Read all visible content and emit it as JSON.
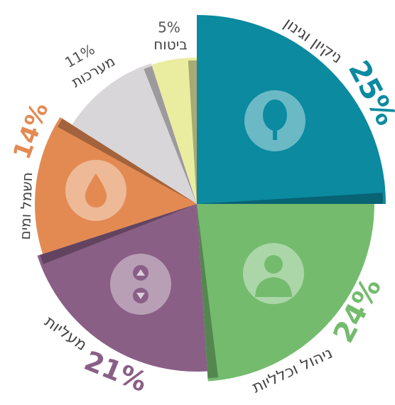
{
  "chart_data": {
    "type": "pie",
    "categories": [
      "ניקיון וגינון",
      "ניהול וכלליות",
      "מעליות",
      "חשמל ומים",
      "מערכות",
      "ביטוח"
    ],
    "values": [
      25,
      24,
      21,
      14,
      11,
      5
    ],
    "value_labels": [
      "25%",
      "24%",
      "21%",
      "14%",
      "11%",
      "5%"
    ],
    "colors": [
      "#0b8aa0",
      "#74bb6e",
      "#8a5f86",
      "#e38a53",
      "#d9d6d9",
      "#eaeca0"
    ]
  }
}
